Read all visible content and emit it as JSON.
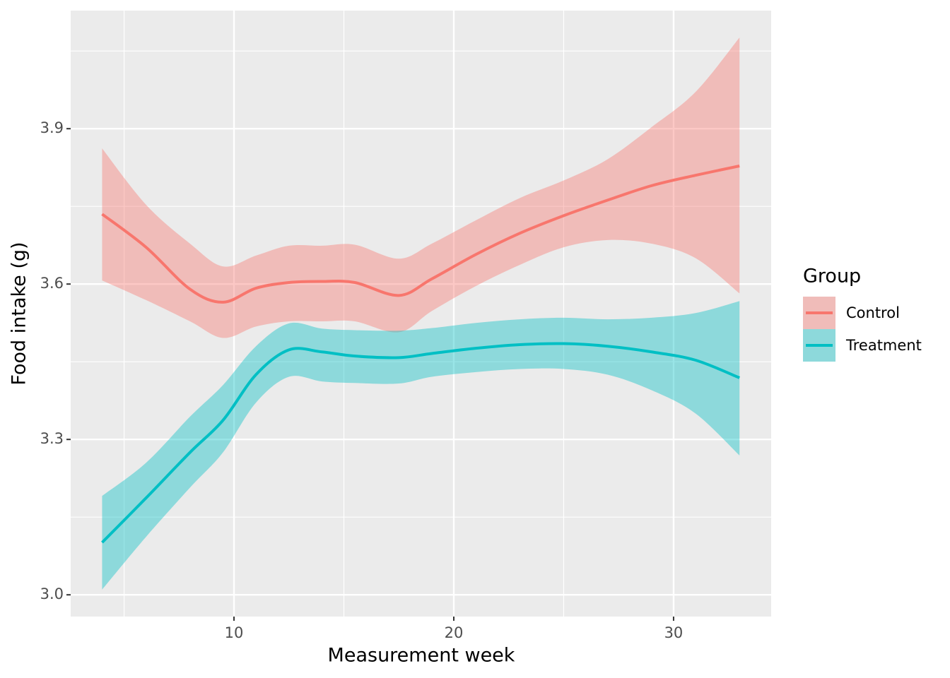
{
  "chart_data": {
    "type": "smooth",
    "x_label": "Measurement week",
    "y_label": "Food intake (g)",
    "legend_title": "Group",
    "legend_position": "right",
    "band_opacity": 0.4,
    "xlim": [
      2.57,
      34.44
    ],
    "ylim": [
      2.958,
      4.128
    ],
    "xticks": [
      10,
      20,
      30
    ],
    "yticks": [
      {
        "value": 3,
        "label": "3.0"
      },
      3.3,
      3.6,
      3.9
    ],
    "x_minor_grid": [
      5,
      15,
      25
    ],
    "y_minor_grid": [
      3.15,
      3.45,
      3.75,
      4.05
    ],
    "grid": true,
    "series": [
      {
        "name": "Control",
        "color": "#F8766D",
        "x": [
          4,
          6,
          8,
          9.5,
          11,
          12.5,
          14,
          15.5,
          17.5,
          19,
          21,
          23,
          25,
          27,
          29,
          31,
          33
        ],
        "values": [
          3.735,
          3.671,
          3.59,
          3.565,
          3.592,
          3.603,
          3.605,
          3.603,
          3.578,
          3.61,
          3.657,
          3.698,
          3.732,
          3.762,
          3.79,
          3.81,
          3.828
        ],
        "upper": [
          3.862,
          3.753,
          3.678,
          3.634,
          3.655,
          3.674,
          3.674,
          3.676,
          3.649,
          3.678,
          3.723,
          3.766,
          3.8,
          3.841,
          3.903,
          3.971,
          4.076
        ],
        "lower": [
          3.607,
          3.569,
          3.528,
          3.496,
          3.518,
          3.528,
          3.528,
          3.528,
          3.507,
          3.548,
          3.596,
          3.637,
          3.671,
          3.685,
          3.678,
          3.65,
          3.582
        ]
      },
      {
        "name": "Treatment",
        "color": "#00BFC4",
        "x": [
          4,
          6,
          8,
          9.5,
          11,
          12.5,
          14,
          15.5,
          17.5,
          19,
          21,
          23,
          25,
          27,
          29,
          31,
          33
        ],
        "values": [
          3.101,
          3.187,
          3.275,
          3.337,
          3.425,
          3.473,
          3.469,
          3.461,
          3.458,
          3.466,
          3.476,
          3.483,
          3.485,
          3.48,
          3.469,
          3.453,
          3.419
        ],
        "upper": [
          3.191,
          3.255,
          3.344,
          3.405,
          3.48,
          3.524,
          3.514,
          3.511,
          3.51,
          3.515,
          3.525,
          3.532,
          3.535,
          3.532,
          3.535,
          3.544,
          3.567
        ],
        "lower": [
          3.01,
          3.112,
          3.207,
          3.275,
          3.371,
          3.421,
          3.412,
          3.409,
          3.408,
          3.421,
          3.43,
          3.436,
          3.436,
          3.425,
          3.395,
          3.35,
          3.269
        ]
      }
    ]
  }
}
